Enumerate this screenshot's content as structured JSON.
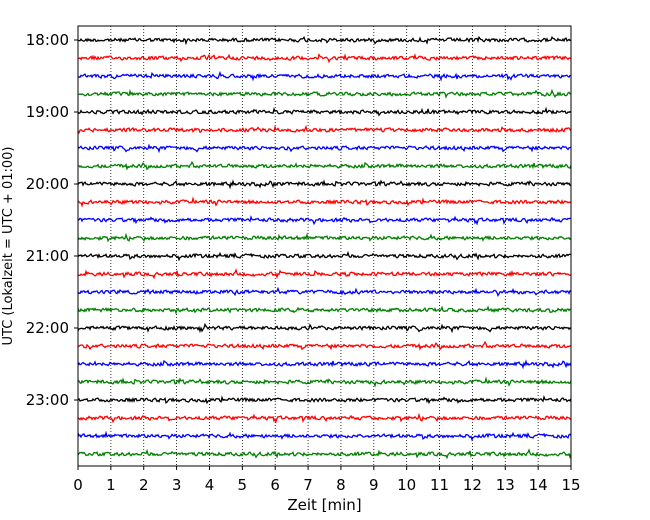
{
  "chart_data": {
    "type": "line",
    "title": "",
    "xlabel": "Zeit  [min]",
    "ylabel": "UTC (Lokalzeit = UTC + 01:00)",
    "xlim": [
      0,
      15
    ],
    "xticks": [
      "0",
      "1",
      "2",
      "3",
      "4",
      "5",
      "6",
      "7",
      "8",
      "9",
      "10",
      "11",
      "12",
      "13",
      "14",
      "15"
    ],
    "yticks": [
      "18:00",
      "19:00",
      "20:00",
      "21:00",
      "22:00",
      "23:00"
    ],
    "row_interval_minutes": 15,
    "rows": 24,
    "first_row": "18:00",
    "last_row": "23:45",
    "colors": [
      "#000000",
      "#ff0000",
      "#0000ff",
      "#008000"
    ],
    "grid": "vertical dotted lines at each minute",
    "legend": "none"
  }
}
